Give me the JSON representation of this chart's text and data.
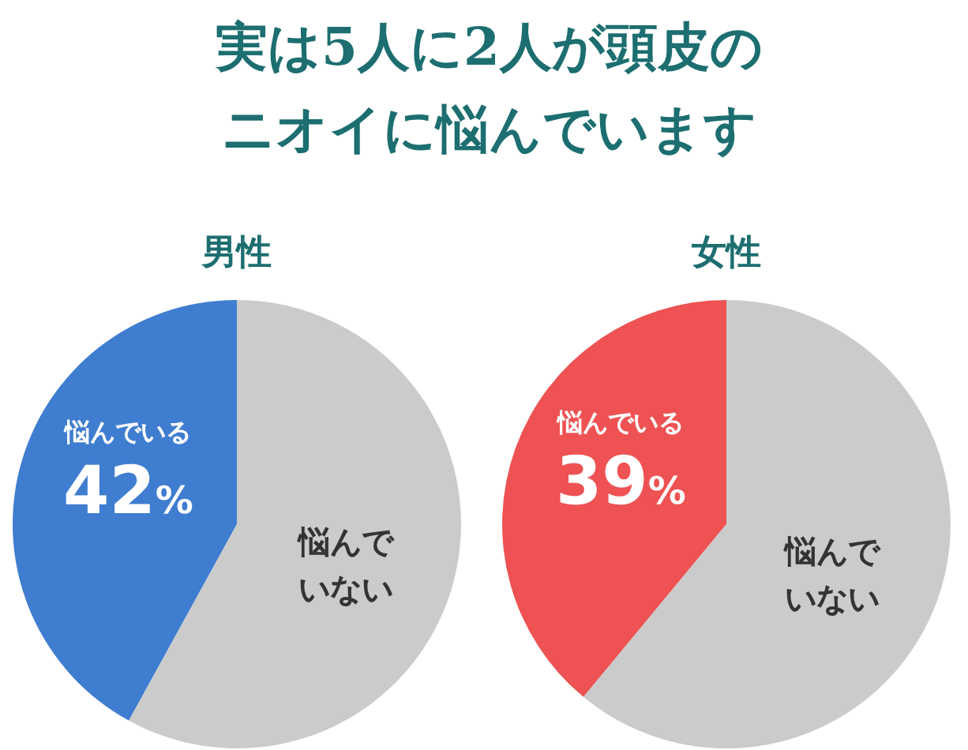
{
  "chart_data": [
    {
      "type": "other",
      "title": "実は5人に2人が頭皮のニオイに悩んでいます"
    },
    {
      "type": "pie",
      "title": "男性",
      "categories": [
        "悩んでいる",
        "悩んでいない"
      ],
      "values": [
        42,
        58
      ],
      "colors": [
        "#3f7dd0",
        "#cbcbcb"
      ],
      "value_labels": [
        "42%",
        null
      ]
    },
    {
      "type": "pie",
      "title": "女性",
      "categories": [
        "悩んでいる",
        "悩んでいない"
      ],
      "values": [
        39,
        61
      ],
      "colors": [
        "#ee5253",
        "#cbcbcb"
      ],
      "value_labels": [
        "39%",
        null
      ]
    }
  ]
}
